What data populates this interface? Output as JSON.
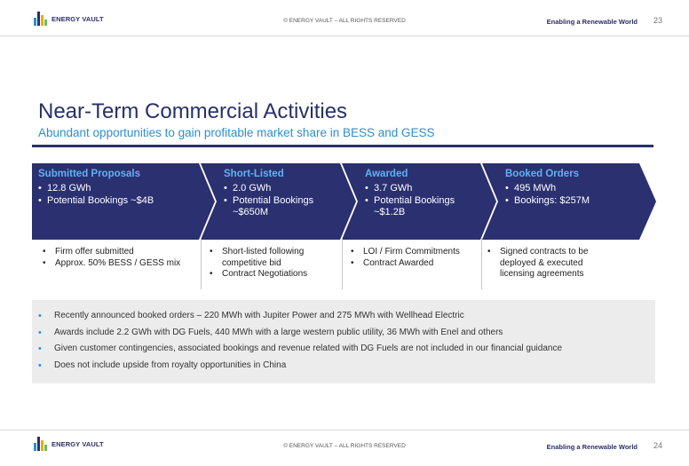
{
  "header": {
    "logo_text": "ENERGY VAULT",
    "copyright": "© ENERGY VAULT – ALL RIGHTS RESERVED",
    "tagline": "Enabling a Renewable World",
    "page_number": "23"
  },
  "footer": {
    "logo_text": "ENERGY VAULT",
    "copyright": "© ENERGY VAULT – ALL RIGHTS RESERVED",
    "tagline": "Enabling a Renewable World",
    "page_number": "24"
  },
  "slide": {
    "title": "Near-Term Commercial Activities",
    "subtitle": "Abundant opportunities to gain profitable market share in BESS and GESS"
  },
  "stages": [
    {
      "title": "Submitted Proposals",
      "bullets": [
        "12.8 GWh",
        "Potential Bookings ~$4B"
      ],
      "details": [
        "Firm offer submitted",
        "Approx. 50% BESS / GESS mix"
      ]
    },
    {
      "title": "Short-Listed",
      "bullets": [
        "2.0 GWh",
        "Potential Bookings ~$650M"
      ],
      "details": [
        "Short-listed following competitive bid",
        "Contract Negotiations"
      ]
    },
    {
      "title": "Awarded",
      "bullets": [
        "3.7 GWh",
        "Potential Bookings ~$1.2B"
      ],
      "details": [
        "LOI / Firm Commitments",
        "Contract Awarded"
      ]
    },
    {
      "title": "Booked Orders",
      "bullets": [
        "495 MWh",
        "Bookings: $257M"
      ],
      "details": [
        "Signed contracts to be deployed & executed licensing agreements"
      ]
    }
  ],
  "notes": [
    "Recently announced booked orders – 220 MWh with Jupiter Power and 275 MWh with Wellhead Electric",
    "Awards include 2.2 GWh with DG Fuels, 440 MWh with a large western public utility, 36 MWh with Enel and others",
    "Given customer contingencies, associated bookings and revenue related with DG Fuels are not included in our financial guidance",
    "Does not include upside from royalty opportunities in China"
  ],
  "colors": {
    "navy": "#27306a",
    "chevron_fill": "#2a3070",
    "accent_blue": "#2b8ed3",
    "stage_title": "#5fb3f0",
    "notes_bg": "#ececec"
  }
}
